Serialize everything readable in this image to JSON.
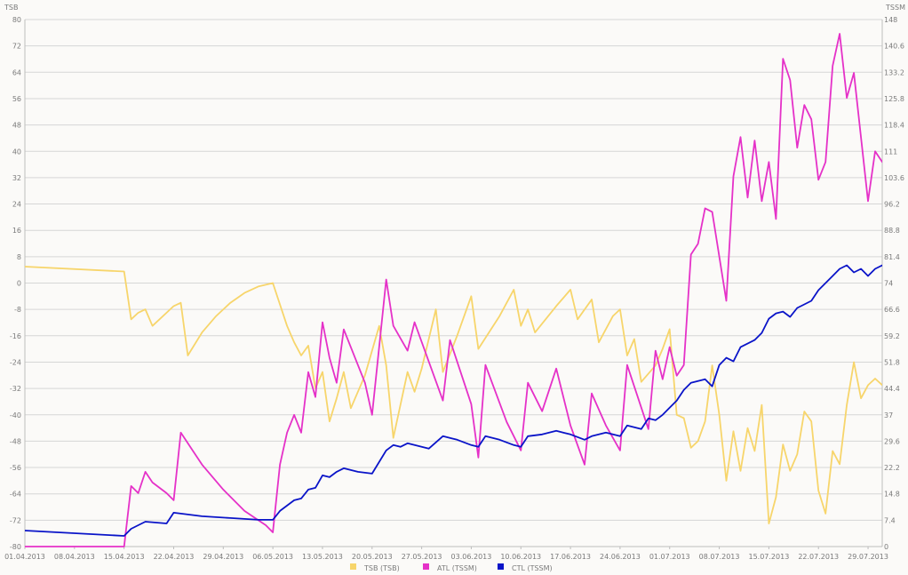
{
  "chart_data": {
    "type": "line",
    "left_axis_title": "TSB",
    "right_axis_title": "TSSM",
    "y_left": {
      "min": -80,
      "max": 80,
      "ticks": [
        "80",
        "72",
        "64",
        "56",
        "48",
        "40",
        "32",
        "24",
        "16",
        "8",
        "0",
        "-8",
        "-16",
        "-24",
        "-32",
        "-40",
        "-48",
        "-56",
        "-64",
        "-72",
        "-80"
      ]
    },
    "y_right": {
      "min": 0,
      "max": 148,
      "ticks": [
        "148",
        "140.6",
        "133.2",
        "125.8",
        "118.4",
        "111",
        "103.6",
        "96.2",
        "88.8",
        "81.4",
        "74",
        "66.6",
        "59.2",
        "51.8",
        "44.4",
        "37",
        "29.6",
        "22.2",
        "14.8",
        "7.4",
        "0"
      ]
    },
    "x_range": [
      "2013-04-01",
      "2013-07-31"
    ],
    "x_ticks": [
      "01.04.2013",
      "08.04.2013",
      "15.04.2013",
      "22.04.2013",
      "29.04.2013",
      "06.05.2013",
      "13.05.2013",
      "20.05.2013",
      "27.05.2013",
      "03.06.2013",
      "10.06.2013",
      "17.06.2013",
      "24.06.2013",
      "01.07.2013",
      "08.07.2013",
      "15.07.2013",
      "22.07.2013",
      "29.07.2013"
    ],
    "grid": true,
    "legend_position": "bottom-center",
    "series": [
      {
        "name": "TSB (TSB)",
        "axis": "left",
        "color": "#f7d56b",
        "points": [
          [
            "2013-04-01",
            5
          ],
          [
            "2013-04-15",
            3.5
          ],
          [
            "2013-04-16",
            -11
          ],
          [
            "2013-04-17",
            -9
          ],
          [
            "2013-04-18",
            -8
          ],
          [
            "2013-04-19",
            -13
          ],
          [
            "2013-04-21",
            -9
          ],
          [
            "2013-04-22",
            -7
          ],
          [
            "2013-04-23",
            -6
          ],
          [
            "2013-04-24",
            -22
          ],
          [
            "2013-04-26",
            -15
          ],
          [
            "2013-04-28",
            -10
          ],
          [
            "2013-04-30",
            -6
          ],
          [
            "2013-05-02",
            -3
          ],
          [
            "2013-05-04",
            -1
          ],
          [
            "2013-05-06",
            0
          ],
          [
            "2013-05-08",
            -13
          ],
          [
            "2013-05-09",
            -18
          ],
          [
            "2013-05-10",
            -22
          ],
          [
            "2013-05-11",
            -19
          ],
          [
            "2013-05-12",
            -32
          ],
          [
            "2013-05-13",
            -27
          ],
          [
            "2013-05-14",
            -42
          ],
          [
            "2013-05-15",
            -35
          ],
          [
            "2013-05-16",
            -27
          ],
          [
            "2013-05-17",
            -38
          ],
          [
            "2013-05-19",
            -28
          ],
          [
            "2013-05-21",
            -13
          ],
          [
            "2013-05-22",
            -25
          ],
          [
            "2013-05-23",
            -47
          ],
          [
            "2013-05-25",
            -27
          ],
          [
            "2013-05-26",
            -33
          ],
          [
            "2013-05-27",
            -26
          ],
          [
            "2013-05-29",
            -8
          ],
          [
            "2013-05-30",
            -27
          ],
          [
            "2013-06-01",
            -16
          ],
          [
            "2013-06-03",
            -4
          ],
          [
            "2013-06-04",
            -20
          ],
          [
            "2013-06-07",
            -10
          ],
          [
            "2013-06-09",
            -2
          ],
          [
            "2013-06-10",
            -13
          ],
          [
            "2013-06-11",
            -8
          ],
          [
            "2013-06-12",
            -15
          ],
          [
            "2013-06-15",
            -7
          ],
          [
            "2013-06-17",
            -2
          ],
          [
            "2013-06-18",
            -11
          ],
          [
            "2013-06-20",
            -5
          ],
          [
            "2013-06-21",
            -18
          ],
          [
            "2013-06-23",
            -10
          ],
          [
            "2013-06-24",
            -8
          ],
          [
            "2013-06-25",
            -22
          ],
          [
            "2013-06-26",
            -17
          ],
          [
            "2013-06-27",
            -30
          ],
          [
            "2013-06-29",
            -25
          ],
          [
            "2013-06-30",
            -20
          ],
          [
            "2013-07-01",
            -14
          ],
          [
            "2013-07-02",
            -40
          ],
          [
            "2013-07-03",
            -41
          ],
          [
            "2013-07-04",
            -50
          ],
          [
            "2013-07-05",
            -48
          ],
          [
            "2013-07-06",
            -42
          ],
          [
            "2013-07-07",
            -25
          ],
          [
            "2013-07-08",
            -40
          ],
          [
            "2013-07-09",
            -60
          ],
          [
            "2013-07-10",
            -45
          ],
          [
            "2013-07-11",
            -57
          ],
          [
            "2013-07-12",
            -44
          ],
          [
            "2013-07-13",
            -51
          ],
          [
            "2013-07-14",
            -37
          ],
          [
            "2013-07-15",
            -73
          ],
          [
            "2013-07-16",
            -65
          ],
          [
            "2013-07-17",
            -49
          ],
          [
            "2013-07-18",
            -57
          ],
          [
            "2013-07-19",
            -52
          ],
          [
            "2013-07-20",
            -39
          ],
          [
            "2013-07-21",
            -42
          ],
          [
            "2013-07-22",
            -63
          ],
          [
            "2013-07-23",
            -70
          ],
          [
            "2013-07-24",
            -51
          ],
          [
            "2013-07-25",
            -55
          ],
          [
            "2013-07-26",
            -37
          ],
          [
            "2013-07-27",
            -24
          ],
          [
            "2013-07-28",
            -35
          ],
          [
            "2013-07-29",
            -31
          ],
          [
            "2013-07-30",
            -29
          ],
          [
            "2013-07-31",
            -31
          ]
        ]
      },
      {
        "name": "ATL (TSSM)",
        "axis": "right",
        "color": "#e531c8",
        "points": [
          [
            "2013-04-01",
            0
          ],
          [
            "2013-04-15",
            0
          ],
          [
            "2013-04-16",
            17
          ],
          [
            "2013-04-17",
            15
          ],
          [
            "2013-04-18",
            21
          ],
          [
            "2013-04-19",
            18
          ],
          [
            "2013-04-21",
            15
          ],
          [
            "2013-04-22",
            13
          ],
          [
            "2013-04-23",
            32
          ],
          [
            "2013-04-26",
            23
          ],
          [
            "2013-04-29",
            16
          ],
          [
            "2013-05-02",
            10
          ],
          [
            "2013-05-05",
            6
          ],
          [
            "2013-05-06",
            4
          ],
          [
            "2013-05-07",
            23
          ],
          [
            "2013-05-08",
            32
          ],
          [
            "2013-05-09",
            37
          ],
          [
            "2013-05-10",
            32
          ],
          [
            "2013-05-11",
            49
          ],
          [
            "2013-05-12",
            42
          ],
          [
            "2013-05-13",
            63
          ],
          [
            "2013-05-14",
            53
          ],
          [
            "2013-05-15",
            46
          ],
          [
            "2013-05-16",
            61
          ],
          [
            "2013-05-19",
            46
          ],
          [
            "2013-05-20",
            37
          ],
          [
            "2013-05-22",
            75
          ],
          [
            "2013-05-23",
            62
          ],
          [
            "2013-05-25",
            55
          ],
          [
            "2013-05-26",
            63
          ],
          [
            "2013-05-30",
            41
          ],
          [
            "2013-05-31",
            58
          ],
          [
            "2013-06-03",
            40
          ],
          [
            "2013-06-04",
            25
          ],
          [
            "2013-06-05",
            51
          ],
          [
            "2013-06-08",
            35
          ],
          [
            "2013-06-10",
            27
          ],
          [
            "2013-06-11",
            46
          ],
          [
            "2013-06-13",
            38
          ],
          [
            "2013-06-15",
            50
          ],
          [
            "2013-06-17",
            34
          ],
          [
            "2013-06-19",
            23
          ],
          [
            "2013-06-20",
            43
          ],
          [
            "2013-06-22",
            34
          ],
          [
            "2013-06-24",
            27
          ],
          [
            "2013-06-25",
            51
          ],
          [
            "2013-06-28",
            33
          ],
          [
            "2013-06-29",
            55
          ],
          [
            "2013-06-30",
            47
          ],
          [
            "2013-07-01",
            56
          ],
          [
            "2013-07-02",
            48
          ],
          [
            "2013-07-03",
            51
          ],
          [
            "2013-07-04",
            82
          ],
          [
            "2013-07-05",
            85
          ],
          [
            "2013-07-06",
            95
          ],
          [
            "2013-07-07",
            94
          ],
          [
            "2013-07-09",
            69
          ],
          [
            "2013-07-10",
            104
          ],
          [
            "2013-07-11",
            115
          ],
          [
            "2013-07-12",
            98
          ],
          [
            "2013-07-13",
            114
          ],
          [
            "2013-07-14",
            97
          ],
          [
            "2013-07-15",
            108
          ],
          [
            "2013-07-16",
            92
          ],
          [
            "2013-07-17",
            137
          ],
          [
            "2013-07-18",
            131
          ],
          [
            "2013-07-19",
            112
          ],
          [
            "2013-07-20",
            124
          ],
          [
            "2013-07-21",
            120
          ],
          [
            "2013-07-22",
            103
          ],
          [
            "2013-07-23",
            108
          ],
          [
            "2013-07-24",
            135
          ],
          [
            "2013-07-25",
            144
          ],
          [
            "2013-07-26",
            126
          ],
          [
            "2013-07-27",
            133
          ],
          [
            "2013-07-29",
            97
          ],
          [
            "2013-07-30",
            111
          ],
          [
            "2013-07-31",
            108
          ],
          [
            "2013-08-01",
            110
          ],
          [
            "2013-08-02",
            95
          ]
        ]
      },
      {
        "name": "CTL (TSSM)",
        "axis": "right",
        "color": "#0a14c8",
        "points": [
          [
            "2013-04-01",
            4.5
          ],
          [
            "2013-04-15",
            3
          ],
          [
            "2013-04-16",
            5
          ],
          [
            "2013-04-17",
            6
          ],
          [
            "2013-04-18",
            7
          ],
          [
            "2013-04-21",
            6.5
          ],
          [
            "2013-04-22",
            9.5
          ],
          [
            "2013-04-26",
            8.5
          ],
          [
            "2013-04-30",
            8
          ],
          [
            "2013-05-04",
            7.5
          ],
          [
            "2013-05-06",
            7.5
          ],
          [
            "2013-05-07",
            10
          ],
          [
            "2013-05-09",
            13
          ],
          [
            "2013-05-10",
            13.5
          ],
          [
            "2013-05-11",
            16
          ],
          [
            "2013-05-12",
            16.5
          ],
          [
            "2013-05-13",
            20
          ],
          [
            "2013-05-14",
            19.5
          ],
          [
            "2013-05-15",
            21
          ],
          [
            "2013-05-16",
            22
          ],
          [
            "2013-05-18",
            21
          ],
          [
            "2013-05-20",
            20.5
          ],
          [
            "2013-05-22",
            27
          ],
          [
            "2013-05-23",
            28.5
          ],
          [
            "2013-05-24",
            28
          ],
          [
            "2013-05-25",
            29
          ],
          [
            "2013-05-27",
            28
          ],
          [
            "2013-05-28",
            27.5
          ],
          [
            "2013-05-30",
            31
          ],
          [
            "2013-06-01",
            30
          ],
          [
            "2013-06-03",
            28.5
          ],
          [
            "2013-06-04",
            28
          ],
          [
            "2013-06-05",
            31
          ],
          [
            "2013-06-07",
            30
          ],
          [
            "2013-06-09",
            28.5
          ],
          [
            "2013-06-10",
            28
          ],
          [
            "2013-06-11",
            31
          ],
          [
            "2013-06-13",
            31.5
          ],
          [
            "2013-06-15",
            32.5
          ],
          [
            "2013-06-17",
            31.5
          ],
          [
            "2013-06-19",
            30
          ],
          [
            "2013-06-20",
            31
          ],
          [
            "2013-06-22",
            32
          ],
          [
            "2013-06-24",
            31
          ],
          [
            "2013-06-25",
            34
          ],
          [
            "2013-06-27",
            33
          ],
          [
            "2013-06-28",
            36
          ],
          [
            "2013-06-29",
            35.5
          ],
          [
            "2013-06-30",
            37
          ],
          [
            "2013-07-01",
            39
          ],
          [
            "2013-07-02",
            41
          ],
          [
            "2013-07-03",
            44
          ],
          [
            "2013-07-04",
            46
          ],
          [
            "2013-07-06",
            47
          ],
          [
            "2013-07-07",
            45
          ],
          [
            "2013-07-08",
            51
          ],
          [
            "2013-07-09",
            53
          ],
          [
            "2013-07-10",
            52
          ],
          [
            "2013-07-11",
            56
          ],
          [
            "2013-07-12",
            57
          ],
          [
            "2013-07-13",
            58
          ],
          [
            "2013-07-14",
            60
          ],
          [
            "2013-07-15",
            64
          ],
          [
            "2013-07-16",
            65.5
          ],
          [
            "2013-07-17",
            66
          ],
          [
            "2013-07-18",
            64.5
          ],
          [
            "2013-07-19",
            67
          ],
          [
            "2013-07-20",
            68
          ],
          [
            "2013-07-21",
            69
          ],
          [
            "2013-07-22",
            72
          ],
          [
            "2013-07-23",
            74
          ],
          [
            "2013-07-24",
            76
          ],
          [
            "2013-07-25",
            78
          ],
          [
            "2013-07-26",
            79
          ],
          [
            "2013-07-27",
            77
          ],
          [
            "2013-07-28",
            78
          ],
          [
            "2013-07-29",
            76
          ],
          [
            "2013-07-30",
            78
          ],
          [
            "2013-07-31",
            79
          ],
          [
            "2013-08-01",
            80
          ],
          [
            "2013-08-02",
            79
          ]
        ]
      }
    ]
  }
}
